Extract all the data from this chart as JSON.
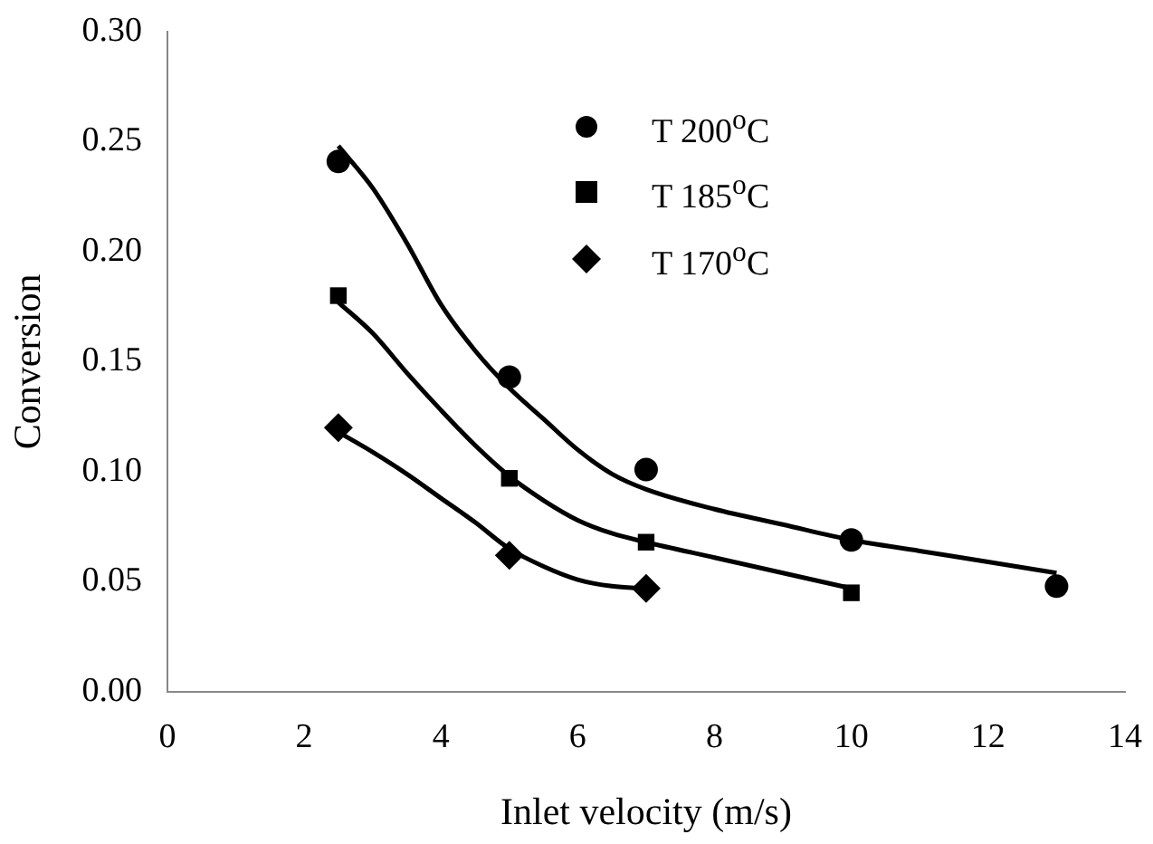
{
  "chart_data": {
    "type": "scatter",
    "xlabel": "Inlet velocity (m/s)",
    "ylabel": "Conversion",
    "xlim": [
      0,
      14
    ],
    "xticks": [
      0,
      2,
      4,
      6,
      8,
      10,
      12,
      14
    ],
    "ylim": [
      0,
      0.3
    ],
    "yticks": [
      {
        "value": 0,
        "label": "0.00"
      },
      0.05,
      {
        "value": 0.1,
        "label": "0.10"
      },
      0.15,
      {
        "value": 0.2,
        "label": "0.20"
      },
      0.25,
      {
        "value": 0.3,
        "label": "0.30"
      }
    ],
    "grid": false,
    "legend": "top right",
    "series": [
      {
        "name": "T 200$^{o}$C",
        "type": "scatter",
        "marker": "circle",
        "color": "#000000",
        "x": [
          2.5,
          5,
          7,
          10,
          13
        ],
        "values": [
          0.241,
          0.143,
          0.101,
          0.069,
          0.048
        ]
      },
      {
        "name": "T 185$^{o}$C",
        "type": "scatter",
        "marker": "square",
        "color": "#000000",
        "x": [
          2.5,
          5,
          7,
          10
        ],
        "values": [
          0.18,
          0.097,
          0.068,
          0.045
        ]
      },
      {
        "name": "T 170$^{o}$C",
        "type": "scatter",
        "marker": "diamond",
        "color": "#000000",
        "x": [
          2.5,
          5,
          7
        ],
        "values": [
          0.12,
          0.062,
          0.047
        ]
      },
      {
        "type": "line",
        "marker": "none",
        "color": "#000000",
        "x": [
          2.5,
          3,
          3.5,
          4,
          4.5,
          5,
          5.5,
          6,
          6.5,
          7,
          8,
          9,
          10,
          11,
          12,
          13
        ],
        "values": [
          0.248,
          0.229,
          0.204,
          0.176,
          0.155,
          0.138,
          0.124,
          0.11,
          0.099,
          0.092,
          0.083,
          0.076,
          0.069,
          0.064,
          0.059,
          0.054
        ]
      },
      {
        "type": "line",
        "marker": "none",
        "color": "#000000",
        "x": [
          2.5,
          3,
          3.5,
          4,
          4.5,
          5,
          5.5,
          6,
          6.5,
          7,
          8,
          9,
          10
        ],
        "values": [
          0.177,
          0.163,
          0.145,
          0.128,
          0.112,
          0.098,
          0.087,
          0.078,
          0.072,
          0.068,
          0.061,
          0.054,
          0.047
        ]
      },
      {
        "type": "line",
        "marker": "none",
        "color": "#000000",
        "x": [
          2.5,
          3,
          3.5,
          4,
          4.5,
          5,
          5.5,
          6,
          6.5,
          7
        ],
        "values": [
          0.118,
          0.109,
          0.099,
          0.088,
          0.077,
          0.065,
          0.057,
          0.051,
          0.048,
          0.047
        ]
      }
    ]
  }
}
